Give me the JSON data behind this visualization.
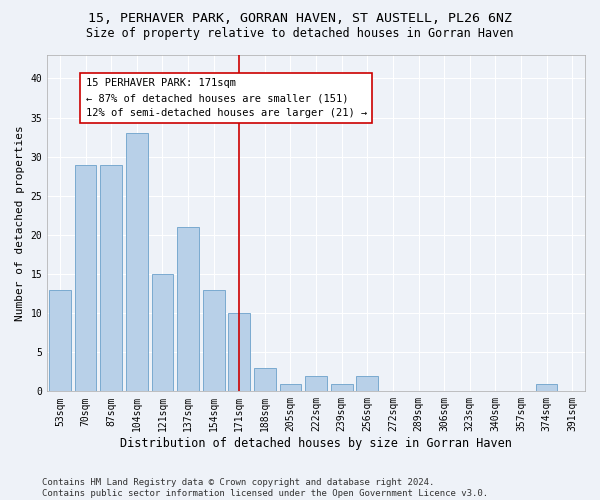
{
  "title": "15, PERHAVER PARK, GORRAN HAVEN, ST AUSTELL, PL26 6NZ",
  "subtitle": "Size of property relative to detached houses in Gorran Haven",
  "xlabel": "Distribution of detached houses by size in Gorran Haven",
  "ylabel": "Number of detached properties",
  "categories": [
    "53sqm",
    "70sqm",
    "87sqm",
    "104sqm",
    "121sqm",
    "137sqm",
    "154sqm",
    "171sqm",
    "188sqm",
    "205sqm",
    "222sqm",
    "239sqm",
    "256sqm",
    "272sqm",
    "289sqm",
    "306sqm",
    "323sqm",
    "340sqm",
    "357sqm",
    "374sqm",
    "391sqm"
  ],
  "values": [
    13,
    29,
    29,
    33,
    15,
    21,
    13,
    10,
    3,
    1,
    2,
    1,
    2,
    0,
    0,
    0,
    0,
    0,
    0,
    1,
    0
  ],
  "bar_color": "#b8d0e8",
  "bar_edge_color": "#7aaad0",
  "vline_x_index": 7,
  "vline_color": "#cc0000",
  "annotation_text": "15 PERHAVER PARK: 171sqm\n← 87% of detached houses are smaller (151)\n12% of semi-detached houses are larger (21) →",
  "annotation_box_color": "#ffffff",
  "annotation_box_edge_color": "#cc0000",
  "ylim": [
    0,
    43
  ],
  "yticks": [
    0,
    5,
    10,
    15,
    20,
    25,
    30,
    35,
    40
  ],
  "footer": "Contains HM Land Registry data © Crown copyright and database right 2024.\nContains public sector information licensed under the Open Government Licence v3.0.",
  "background_color": "#eef2f8",
  "grid_color": "#ffffff",
  "title_fontsize": 9.5,
  "subtitle_fontsize": 8.5,
  "xlabel_fontsize": 8.5,
  "ylabel_fontsize": 8,
  "tick_fontsize": 7,
  "annotation_fontsize": 7.5,
  "footer_fontsize": 6.5
}
